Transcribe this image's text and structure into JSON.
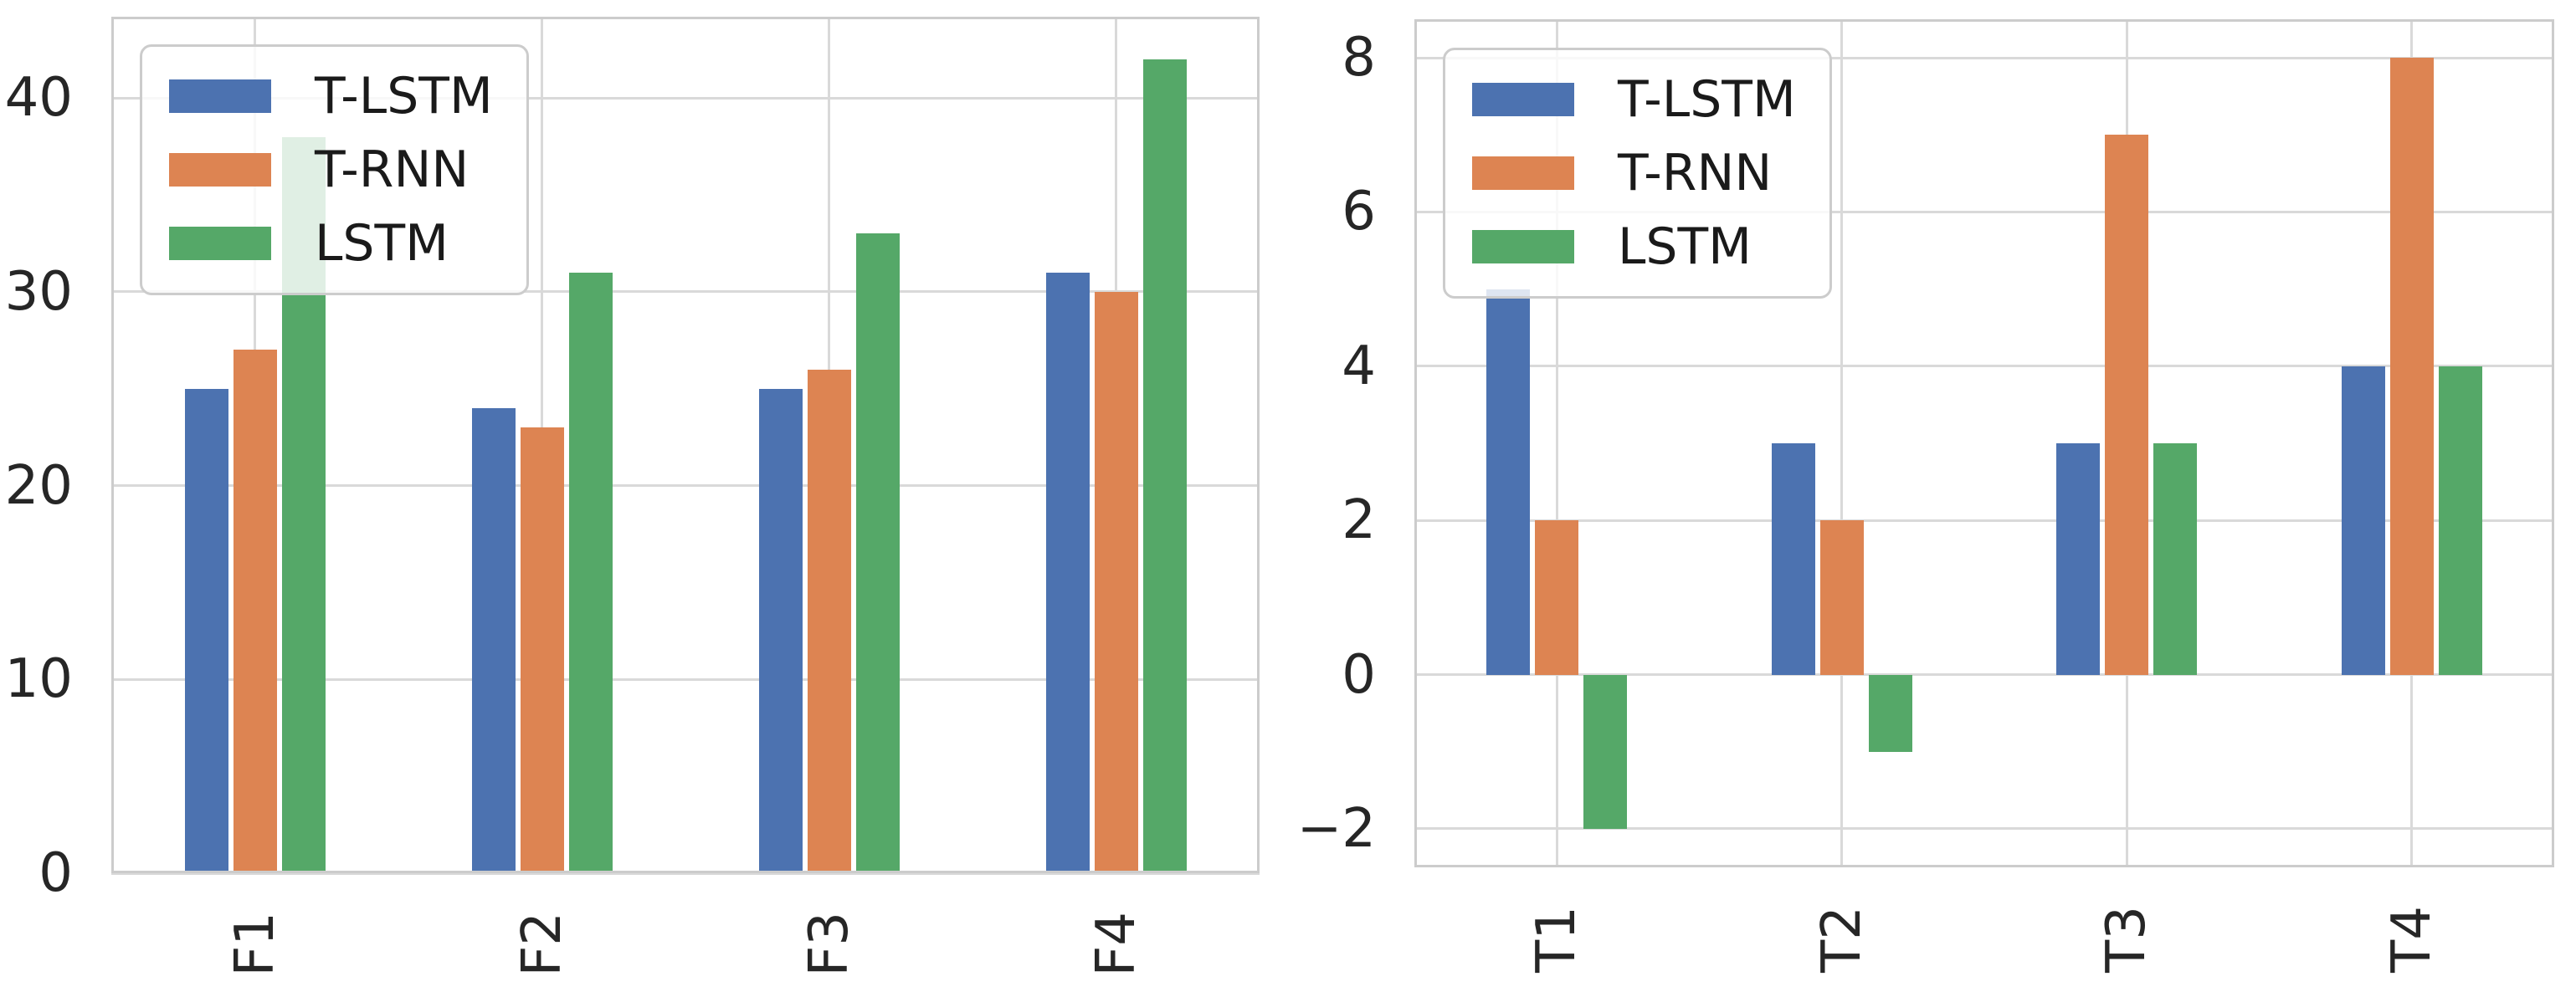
{
  "figure": {
    "background": "#ffffff",
    "frame_color": "#cccccc",
    "grid_color": "#d9d9d9",
    "text_color": "#262626",
    "legend_labels": [
      "T-LSTM",
      "T-RNN",
      "LSTM"
    ],
    "series_colors": [
      "#4C72B0",
      "#DD8452",
      "#55A868"
    ]
  },
  "chart_data": [
    {
      "type": "bar",
      "title": "",
      "xlabel": "",
      "ylabel": "",
      "categories": [
        "F1",
        "F2",
        "F3",
        "F4"
      ],
      "series": [
        {
          "name": "T-LSTM",
          "color": "#4C72B0",
          "values": [
            25,
            24,
            25,
            31
          ]
        },
        {
          "name": "T-RNN",
          "color": "#DD8452",
          "values": [
            27,
            23,
            26,
            30
          ]
        },
        {
          "name": "LSTM",
          "color": "#55A868",
          "values": [
            38,
            31,
            33,
            42
          ]
        }
      ],
      "yticks": [
        0,
        10,
        20,
        30,
        40
      ],
      "ylim": [
        0,
        44.2
      ],
      "grid": true,
      "legend_position": "upper left",
      "xtick_rotation": 90
    },
    {
      "type": "bar",
      "title": "",
      "xlabel": "",
      "ylabel": "",
      "categories": [
        "T1",
        "T2",
        "T3",
        "T4"
      ],
      "series": [
        {
          "name": "T-LSTM",
          "color": "#4C72B0",
          "values": [
            5,
            3,
            3,
            4
          ]
        },
        {
          "name": "T-RNN",
          "color": "#DD8452",
          "values": [
            2,
            2,
            7,
            8
          ]
        },
        {
          "name": "LSTM",
          "color": "#55A868",
          "values": [
            -2,
            -1,
            3,
            4
          ]
        }
      ],
      "yticks": [
        -2,
        0,
        2,
        4,
        6,
        8
      ],
      "ylim": [
        -2.5,
        8.5
      ],
      "grid": true,
      "legend_position": "upper left",
      "xtick_rotation": 90
    }
  ]
}
